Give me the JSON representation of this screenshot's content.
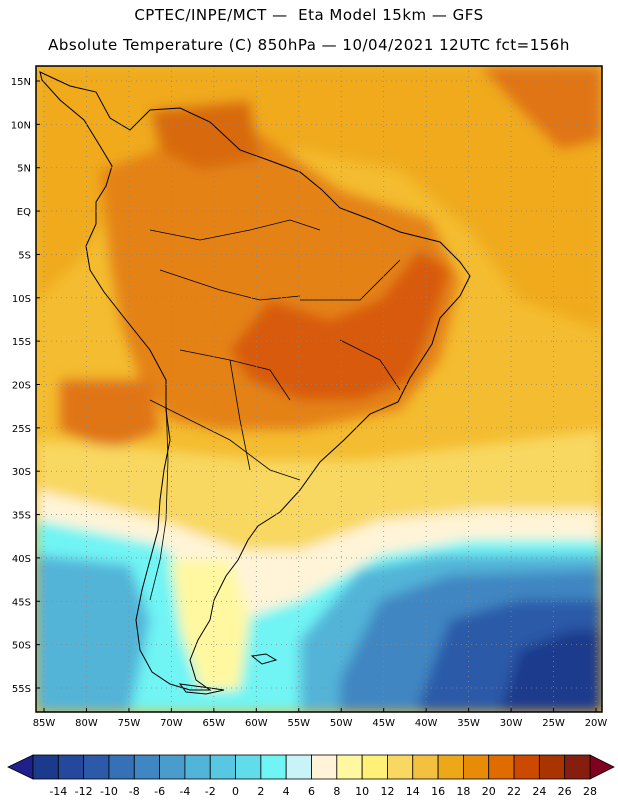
{
  "header": {
    "line1": "CPTEC/INPE/MCT —  Eta Model 15km — GFS",
    "line2": "Absolute Temperature (C) 850hPa — 10/04/2021 12UTC fct=156h"
  },
  "map": {
    "lat_labels": [
      "15N",
      "10N",
      "5N",
      "EQ",
      "5S",
      "10S",
      "15S",
      "20S",
      "25S",
      "30S",
      "35S",
      "40S",
      "45S",
      "50S",
      "55S"
    ],
    "lat_values": [
      15,
      10,
      5,
      0,
      -5,
      -10,
      -15,
      -20,
      -25,
      -30,
      -35,
      -40,
      -45,
      -50,
      -55
    ],
    "lon_labels": [
      "85W",
      "80W",
      "75W",
      "70W",
      "65W",
      "60W",
      "55W",
      "50W",
      "45W",
      "40W",
      "35W",
      "30W",
      "25W",
      "20W"
    ],
    "lon_values": [
      -85,
      -80,
      -75,
      -70,
      -65,
      -60,
      -55,
      -50,
      -45,
      -40,
      -35,
      -30,
      -25,
      -20
    ],
    "lon_range": [
      -85,
      -20
    ],
    "lat_range": [
      -57.5,
      17
    ],
    "grid": "dotted",
    "colorbar": {
      "labels": [
        "-14",
        "-12",
        "-10",
        "-8",
        "-6",
        "-4",
        "-2",
        "0",
        "2",
        "4",
        "6",
        "8",
        "10",
        "12",
        "14",
        "16",
        "18",
        "20",
        "22",
        "24",
        "26",
        "28"
      ],
      "colors": [
        "#1c3a8c",
        "#24499c",
        "#2c5aa8",
        "#3670b6",
        "#3f86c2",
        "#4a9ccc",
        "#52b4d8",
        "#58c8e2",
        "#62dcea",
        "#70f4f4",
        "#c8f4f8",
        "#fff4d8",
        "#fff8a0",
        "#fff078",
        "#f8d860",
        "#f4c040",
        "#eca818",
        "#e88c08",
        "#e06c00",
        "#cc4a00",
        "#a83400",
        "#861e10"
      ],
      "low_arrow_color": "#20208c",
      "high_arrow_color": "#800020"
    },
    "temperature_zones": [
      {
        "name": "warm-north",
        "color": "#f0aa1c"
      },
      {
        "name": "hot-interior",
        "color": "#e07414"
      },
      {
        "name": "hottest",
        "color": "#d85a0a"
      },
      {
        "name": "mild-south",
        "color": "#f8d860"
      },
      {
        "name": "cool-band",
        "color": "#fff4d8"
      },
      {
        "name": "cold-1",
        "color": "#70f4f4"
      },
      {
        "name": "cold-2",
        "color": "#52b4d8"
      },
      {
        "name": "cold-3",
        "color": "#3f86c2"
      },
      {
        "name": "cold-4",
        "color": "#2c5aa8"
      },
      {
        "name": "coldest",
        "color": "#1c3a8c"
      }
    ]
  }
}
